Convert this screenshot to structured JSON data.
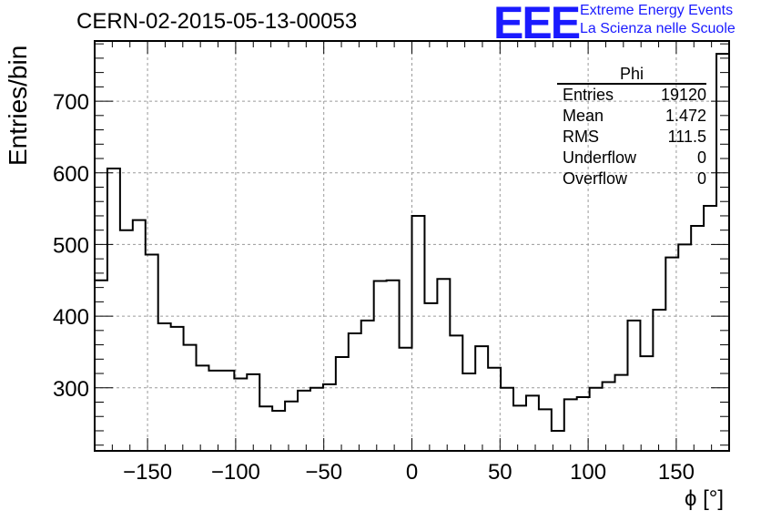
{
  "header": {
    "title": "CERN-02-2015-05-13-00053",
    "logo": "EEE",
    "logo_line1": "Extreme Energy Events",
    "logo_line2": "La Scienza nelle Scuole"
  },
  "stats": {
    "name": "Phi",
    "rows": [
      {
        "label": "Entries",
        "value": "19120"
      },
      {
        "label": "Mean",
        "value": "1.472"
      },
      {
        "label": "RMS",
        "value": "111.5"
      },
      {
        "label": "Underflow",
        "value": "0"
      },
      {
        "label": "Overflow",
        "value": "0"
      }
    ]
  },
  "chart_data": {
    "type": "histogram",
    "xlabel": "ϕ [°]",
    "ylabel": "Entries/bin",
    "xlim": [
      -180,
      180
    ],
    "ylim": [
      212,
      784
    ],
    "grid": true,
    "bin_width": 7.2,
    "xticks": [
      -150,
      -100,
      -50,
      0,
      50,
      100,
      150
    ],
    "yticks": [
      300,
      400,
      500,
      600,
      700
    ],
    "values": [
      450,
      606,
      520,
      534,
      486,
      390,
      385,
      360,
      331,
      324,
      324,
      313,
      319,
      274,
      268,
      281,
      296,
      300,
      305,
      343,
      376,
      394,
      449,
      450,
      356,
      540,
      418,
      452,
      373,
      320,
      358,
      328,
      300,
      275,
      289,
      270,
      240,
      284,
      287,
      300,
      308,
      318,
      394,
      344,
      409,
      482,
      500,
      526,
      554,
      766
    ],
    "color": "#000000",
    "grid_color": "#9a9a9a"
  }
}
